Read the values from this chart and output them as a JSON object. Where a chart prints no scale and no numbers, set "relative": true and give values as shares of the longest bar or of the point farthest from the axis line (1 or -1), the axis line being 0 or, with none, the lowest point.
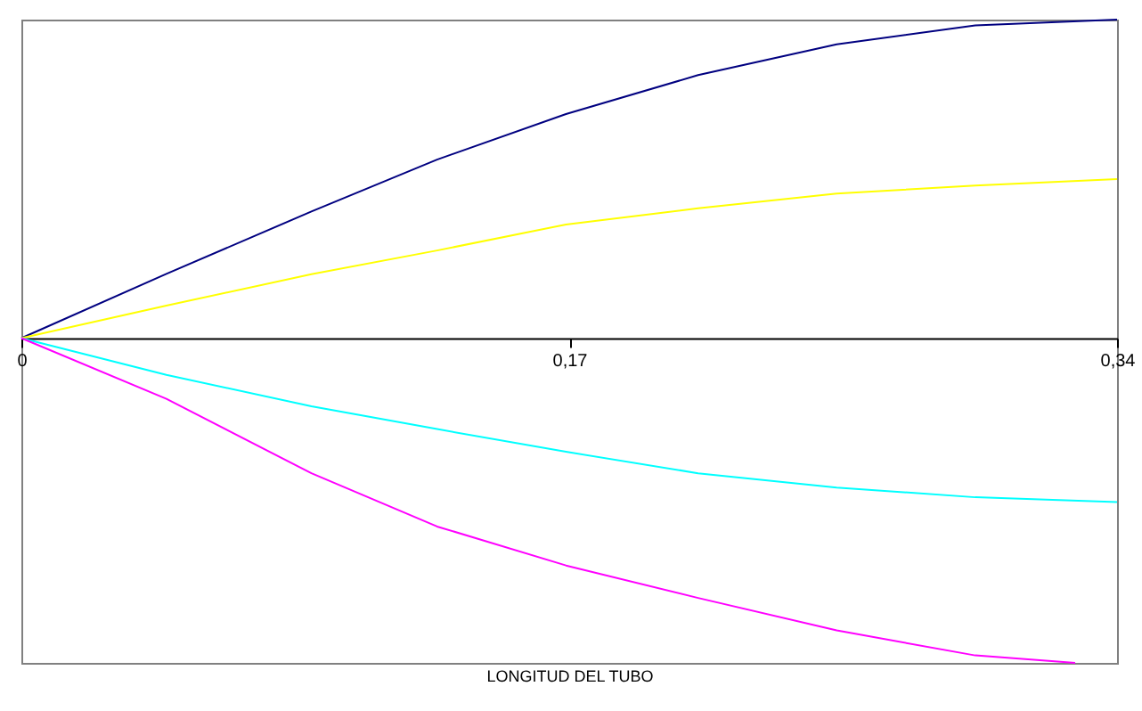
{
  "chart_data": {
    "type": "line",
    "relative": true,
    "xlabel": "LONGITUD DEL TUBO",
    "xlim": [
      0,
      0.34
    ],
    "xticks": [
      0,
      {
        "value": 0.17,
        "label": "0,17"
      },
      {
        "value": 0.34,
        "label": "0,34"
      }
    ],
    "tick_labels": "x",
    "x": [
      0,
      0.045,
      0.09,
      0.129,
      0.169,
      0.21,
      0.253,
      0.296,
      0.34
    ],
    "series": [
      {
        "color": "#000080",
        "values": [
          0,
          0.198,
          0.39,
          0.55,
          0.69,
          0.81,
          0.905,
          0.963,
          0.981
        ]
      },
      {
        "color": "#ffff00",
        "values": [
          0,
          0.1,
          0.197,
          0.27,
          0.35,
          0.4,
          0.445,
          0.47,
          0.49
        ]
      },
      {
        "color": "#00ffff",
        "values": [
          0,
          -0.113,
          -0.21,
          -0.28,
          -0.35,
          -0.416,
          -0.46,
          -0.49,
          -0.505
        ]
      },
      {
        "color": "#ff00ff",
        "x": [
          0,
          0.045,
          0.09,
          0.129,
          0.169,
          0.21,
          0.253,
          0.296,
          0.327
        ],
        "values": [
          0,
          -0.187,
          -0.416,
          -0.58,
          -0.7,
          -0.8,
          -0.9,
          -0.977,
          -1
        ]
      }
    ]
  }
}
